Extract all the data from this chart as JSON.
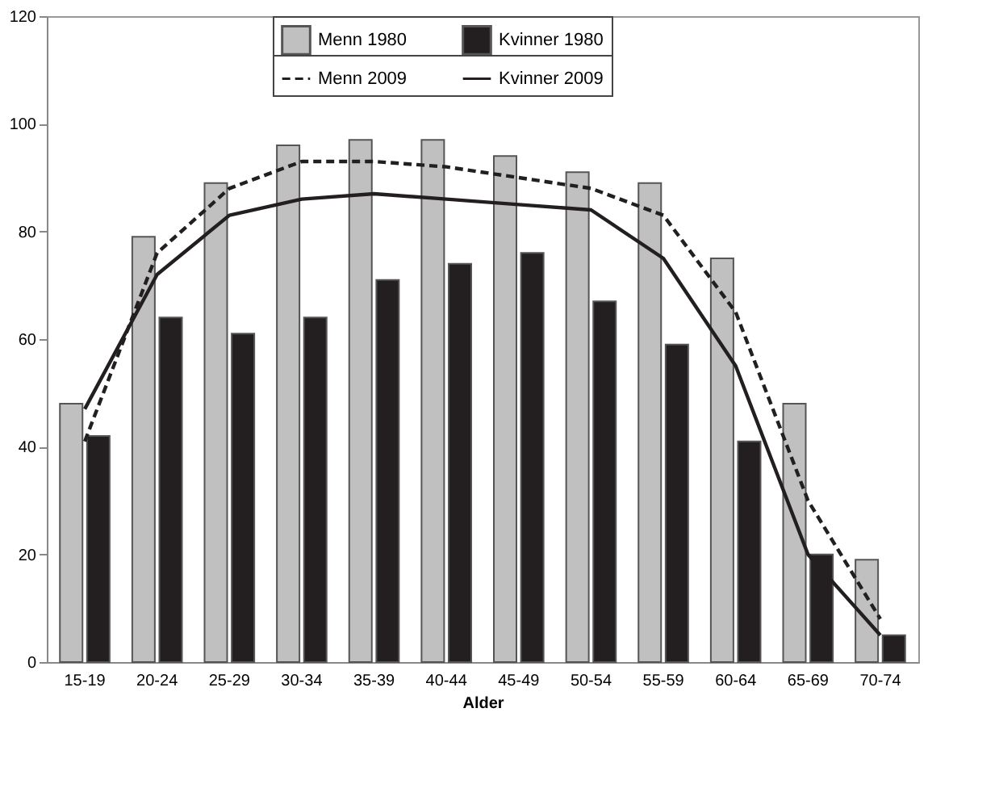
{
  "chart_data": {
    "type": "bar",
    "xlabel": "Alder",
    "categories": [
      "15-19",
      "20-24",
      "25-29",
      "30-34",
      "35-39",
      "40-44",
      "45-49",
      "50-54",
      "55-59",
      "60-64",
      "65-69",
      "70-74"
    ],
    "series": [
      {
        "name": "Menn 1980",
        "color": "#c0c0c0",
        "values": [
          48,
          79,
          89,
          96,
          97,
          97,
          94,
          91,
          89,
          75,
          48,
          19
        ]
      },
      {
        "name": "Kvinner 1980",
        "color": "#231f20",
        "values": [
          42,
          64,
          61,
          64,
          71,
          74,
          76,
          67,
          59,
          41,
          20,
          5
        ]
      },
      {
        "name": "Menn 2009",
        "type": "line",
        "line_style": "dashed",
        "color": "#231f20",
        "values": [
          41,
          76,
          88,
          93,
          93,
          92,
          90,
          88,
          83,
          65,
          30,
          8
        ]
      },
      {
        "name": "Kvinner 2009",
        "type": "line",
        "line_style": "solid",
        "color": "#231f20",
        "values": [
          47,
          72,
          83,
          86,
          87,
          86,
          85,
          84,
          75,
          55,
          20,
          5
        ]
      }
    ],
    "ylim": [
      0,
      120
    ],
    "yticks": [
      0,
      20,
      40,
      60,
      80,
      100,
      120
    ],
    "grid": false,
    "legend": "top"
  }
}
